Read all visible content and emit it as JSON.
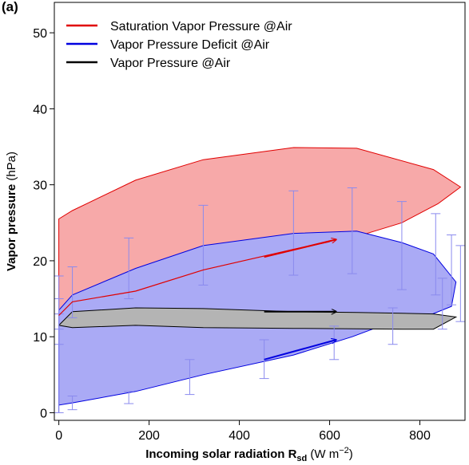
{
  "panel_label": "(a)",
  "chart_data": {
    "type": "area",
    "title": "",
    "xlabel": {
      "main": "Incoming solar radiation R",
      "sub": "sd",
      "unit_open": " (W m",
      "unit_sup": "−2",
      "unit_close": ")"
    },
    "ylabel": {
      "bold": "Vapor pressure",
      "unit": " (hPa)"
    },
    "xlim": [
      -10,
      900
    ],
    "ylim": [
      -1,
      54
    ],
    "x_ticks": [
      0,
      200,
      400,
      600,
      800
    ],
    "y_ticks": [
      0,
      10,
      20,
      30,
      40,
      50
    ],
    "grid": false,
    "legend_position": "top-left",
    "series": [
      {
        "name": "Saturation Vapor Pressure @Air",
        "color": "#e00000",
        "fill": "#f7a9a9",
        "envelope": [
          [
            0,
            12
          ],
          [
            0,
            25.5
          ],
          [
            30,
            26.6
          ],
          [
            170,
            30.6
          ],
          [
            320,
            33.3
          ],
          [
            520,
            34.9
          ],
          [
            660,
            34.8
          ],
          [
            830,
            32.0
          ],
          [
            890,
            29.7
          ],
          [
            840,
            27.5
          ],
          [
            760,
            25.0
          ],
          [
            650,
            23.0
          ],
          [
            520,
            21.5
          ],
          [
            320,
            18.8
          ],
          [
            170,
            16.0
          ],
          [
            30,
            14.6
          ],
          [
            0,
            12
          ]
        ],
        "mean_line": [
          [
            0,
            12.8
          ],
          [
            30,
            14.6
          ],
          [
            170,
            16.0
          ],
          [
            320,
            18.8
          ],
          [
            520,
            21.5
          ],
          [
            600,
            22.5
          ]
        ],
        "arrow": {
          "from": [
            455,
            20.5
          ],
          "to": [
            615,
            22.8
          ]
        }
      },
      {
        "name": "Vapor Pressure Deficit @Air",
        "color": "#0000e0",
        "fill": "#aaaaf5",
        "envelope": [
          [
            0,
            0
          ],
          [
            0,
            13.5
          ],
          [
            30,
            15.5
          ],
          [
            170,
            19.0
          ],
          [
            320,
            22.0
          ],
          [
            520,
            23.6
          ],
          [
            660,
            23.9
          ],
          [
            760,
            22.4
          ],
          [
            830,
            20.9
          ],
          [
            880,
            17.2
          ],
          [
            870,
            14.0
          ],
          [
            820,
            12.8
          ],
          [
            740,
            12.0
          ],
          [
            650,
            10.0
          ],
          [
            520,
            7.6
          ],
          [
            320,
            5.0
          ],
          [
            170,
            2.8
          ],
          [
            30,
            1.3
          ],
          [
            0,
            1.0
          ],
          [
            0,
            0
          ]
        ],
        "arrow": {
          "from": [
            455,
            7.0
          ],
          "to": [
            615,
            9.6
          ]
        }
      },
      {
        "name": "Vapor Pressure @Air",
        "color": "#000000",
        "fill": "#b4b4b4",
        "envelope": [
          [
            0,
            11.5
          ],
          [
            30,
            13.3
          ],
          [
            170,
            13.8
          ],
          [
            320,
            13.7
          ],
          [
            520,
            13.3
          ],
          [
            660,
            13.2
          ],
          [
            760,
            13.1
          ],
          [
            830,
            13.0
          ],
          [
            880,
            12.6
          ],
          [
            830,
            11.0
          ],
          [
            760,
            11.0
          ],
          [
            520,
            11.1
          ],
          [
            320,
            11.2
          ],
          [
            170,
            11.5
          ],
          [
            30,
            11.2
          ],
          [
            0,
            11.5
          ]
        ],
        "arrow": {
          "from": [
            455,
            13.3
          ],
          "to": [
            615,
            13.3
          ]
        }
      }
    ],
    "error_bars": [
      {
        "x": 0,
        "low": 11.0,
        "high": 18.0
      },
      {
        "x": 0,
        "low": 0.0,
        "high": 13.0
      },
      {
        "x": 0,
        "low": 9.0,
        "high": 15.0
      },
      {
        "x": 30,
        "low": 12.5,
        "high": 19.2
      },
      {
        "x": 30,
        "low": 0.4,
        "high": 2.2
      },
      {
        "x": 155,
        "low": 15.0,
        "high": 23.0
      },
      {
        "x": 155,
        "low": 1.2,
        "high": 2.8
      },
      {
        "x": 290,
        "low": 2.4,
        "high": 7.0
      },
      {
        "x": 320,
        "low": 16.8,
        "high": 27.3
      },
      {
        "x": 455,
        "low": 4.5,
        "high": 9.6
      },
      {
        "x": 520,
        "low": 18.1,
        "high": 29.2
      },
      {
        "x": 610,
        "low": 7.0,
        "high": 11.4
      },
      {
        "x": 650,
        "low": 18.3,
        "high": 29.6
      },
      {
        "x": 740,
        "low": 9.0,
        "high": 13.8
      },
      {
        "x": 760,
        "low": 16.2,
        "high": 27.8
      },
      {
        "x": 835,
        "low": 15.5,
        "high": 26.2
      },
      {
        "x": 850,
        "low": 11.0,
        "high": 17.7
      },
      {
        "x": 870,
        "low": 14.2,
        "high": 23.4
      },
      {
        "x": 890,
        "low": 12.0,
        "high": 22.0
      }
    ]
  }
}
